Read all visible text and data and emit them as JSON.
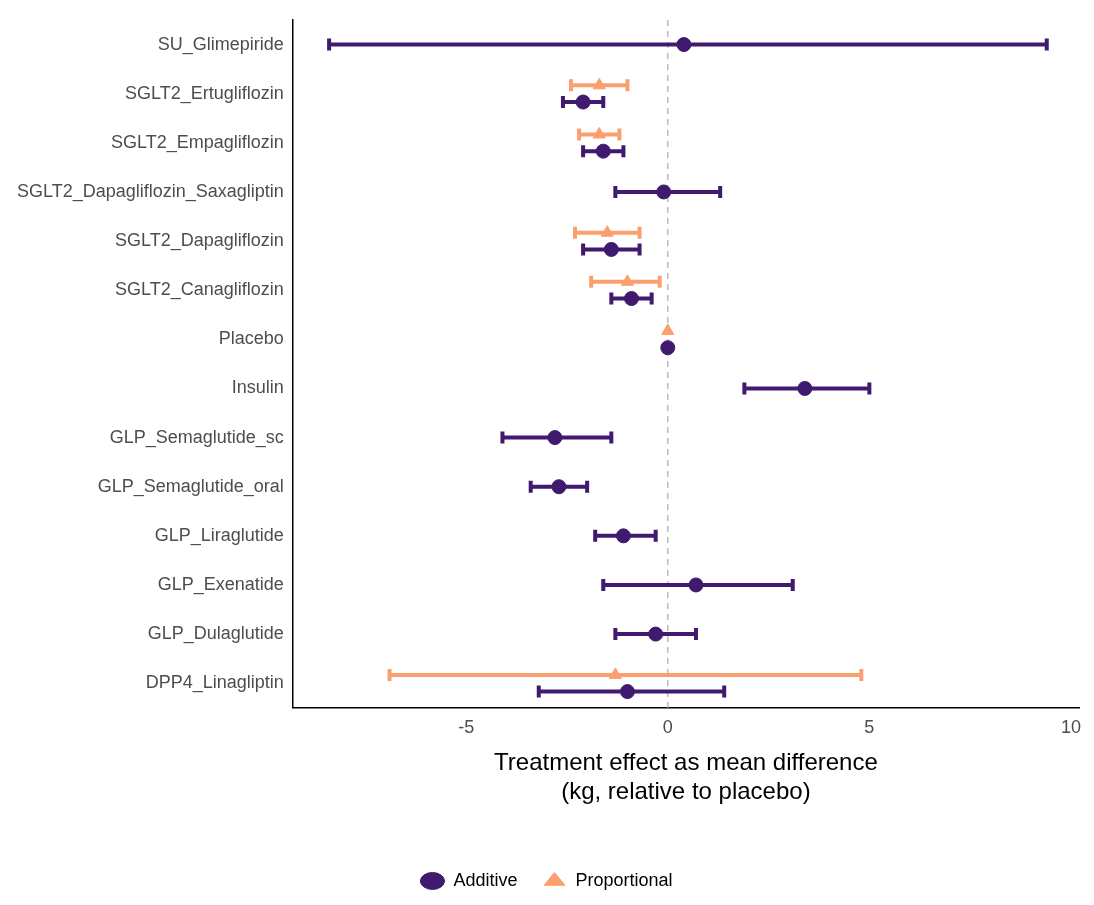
{
  "chart_data": {
    "type": "scatter",
    "orientation": "horizontal",
    "categories": [
      "SU_Glimepiride",
      "SGLT2_Ertugliflozin",
      "SGLT2_Empagliflozin",
      "SGLT2_Dapagliflozin_Saxagliptin",
      "SGLT2_Dapagliflozin",
      "SGLT2_Canagliflozin",
      "Placebo",
      "Insulin",
      "GLP_Semaglutide_sc",
      "GLP_Semaglutide_oral",
      "GLP_Liraglutide",
      "GLP_Exenatide",
      "GLP_Dulaglutide",
      "DPP4_Linagliptin"
    ],
    "series": [
      {
        "name": "Additive",
        "color": "#3f1a6e",
        "marker": "circle",
        "values": [
          0.4,
          -2.1,
          -1.6,
          -0.1,
          -1.4,
          -0.9,
          0,
          3.4,
          -2.8,
          -2.7,
          -1.1,
          0.7,
          -0.3,
          -1.0
        ],
        "errors": [
          [
            -8.4,
            9.4
          ],
          [
            -2.6,
            -1.6
          ],
          [
            -2.1,
            -1.1
          ],
          [
            -1.3,
            1.3
          ],
          [
            -2.1,
            -0.7
          ],
          [
            -1.4,
            -0.4
          ],
          null,
          [
            1.9,
            5.0
          ],
          [
            -4.1,
            -1.4
          ],
          [
            -3.4,
            -2.0
          ],
          [
            -1.8,
            -0.3
          ],
          [
            -1.6,
            3.1
          ],
          [
            -1.3,
            0.7
          ],
          [
            -3.2,
            1.4
          ]
        ]
      },
      {
        "name": "Proportional",
        "color": "#fc9f6e",
        "marker": "triangle",
        "values": [
          null,
          -1.7,
          -1.7,
          null,
          -1.5,
          -1.0,
          0,
          null,
          null,
          null,
          null,
          null,
          null,
          -1.3
        ],
        "errors": [
          null,
          [
            -2.4,
            -1.0
          ],
          [
            -2.2,
            -1.2
          ],
          null,
          [
            -2.3,
            -0.7
          ],
          [
            -1.9,
            -0.2
          ],
          null,
          null,
          null,
          null,
          null,
          null,
          null,
          [
            -6.9,
            4.8
          ]
        ]
      }
    ],
    "xlabel": "Treatment effect as mean difference\n(kg, relative to placebo)",
    "xlim": [
      -9.3,
      10.2
    ],
    "xticks": [
      -5,
      0,
      5,
      10
    ],
    "ref_lines": [
      {
        "axis": "x",
        "value": 0,
        "color": "#bbbbbb",
        "line_style": "dashed"
      }
    ],
    "grid": false,
    "legend": "bottom"
  }
}
